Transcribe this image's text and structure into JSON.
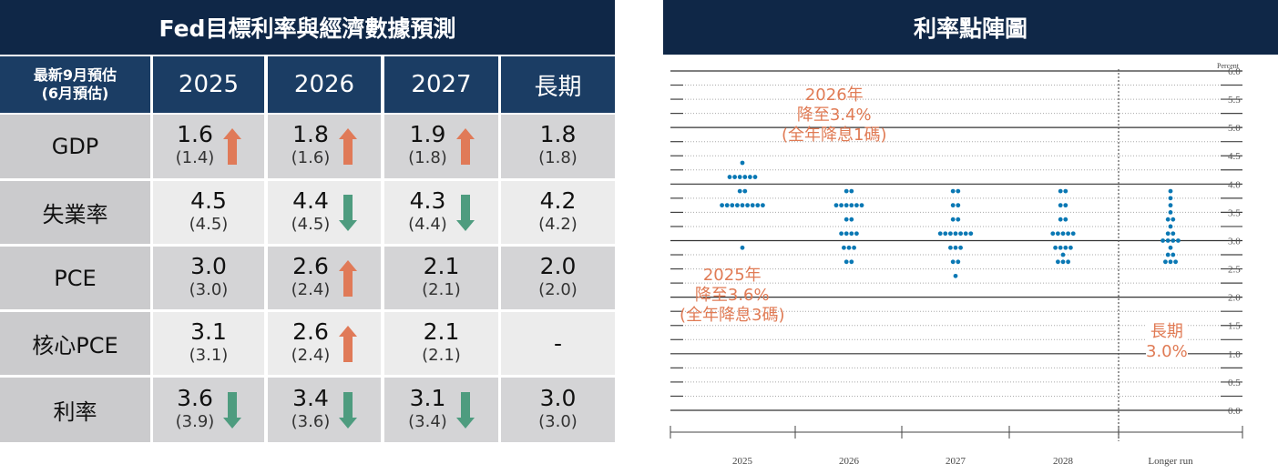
{
  "table": {
    "title": "Fed目標利率與經濟數據預測",
    "corner": [
      "最新9月預估",
      "(6月預估)"
    ],
    "columns": [
      "2025",
      "2026",
      "2027",
      "長期"
    ],
    "rows": [
      {
        "label": "GDP",
        "cells": [
          {
            "v": "1.6",
            "p": "(1.4)",
            "a": "up"
          },
          {
            "v": "1.8",
            "p": "(1.6)",
            "a": "up"
          },
          {
            "v": "1.9",
            "p": "(1.8)",
            "a": "up"
          },
          {
            "v": "1.8",
            "p": "(1.8)",
            "a": ""
          }
        ]
      },
      {
        "label": "失業率",
        "cells": [
          {
            "v": "4.5",
            "p": "(4.5)",
            "a": ""
          },
          {
            "v": "4.4",
            "p": "(4.5)",
            "a": "down"
          },
          {
            "v": "4.3",
            "p": "(4.4)",
            "a": "down"
          },
          {
            "v": "4.2",
            "p": "(4.2)",
            "a": ""
          }
        ]
      },
      {
        "label": "PCE",
        "cells": [
          {
            "v": "3.0",
            "p": "(3.0)",
            "a": ""
          },
          {
            "v": "2.6",
            "p": "(2.4)",
            "a": "up"
          },
          {
            "v": "2.1",
            "p": "(2.1)",
            "a": ""
          },
          {
            "v": "2.0",
            "p": "(2.0)",
            "a": ""
          }
        ]
      },
      {
        "label": "核心PCE",
        "cells": [
          {
            "v": "3.1",
            "p": "(3.1)",
            "a": ""
          },
          {
            "v": "2.6",
            "p": "(2.4)",
            "a": "up"
          },
          {
            "v": "2.1",
            "p": "(2.1)",
            "a": ""
          },
          {
            "v": "-",
            "p": "",
            "a": ""
          }
        ]
      },
      {
        "label": "利率",
        "cells": [
          {
            "v": "3.6",
            "p": "(3.9)",
            "a": "down"
          },
          {
            "v": "3.4",
            "p": "(3.6)",
            "a": "down"
          },
          {
            "v": "3.1",
            "p": "(3.4)",
            "a": "down"
          },
          {
            "v": "3.0",
            "p": "(3.0)",
            "a": ""
          }
        ]
      }
    ]
  },
  "colors": {
    "up": "#e07a58",
    "down": "#4e9c7f",
    "dot": "#0a78b4",
    "annotation": "#e07b55"
  },
  "chart_data": {
    "type": "scatter",
    "title": "利率點陣圖",
    "ylabel": "Percent",
    "ylim": [
      0,
      6
    ],
    "yticks": [
      "6.0",
      "5.5",
      "5.0",
      "4.5",
      "4.0",
      "3.5",
      "3.0",
      "2.5",
      "2.0",
      "1.5",
      "1.0",
      "0.5",
      "0.0"
    ],
    "categories": [
      "2025",
      "2026",
      "2027",
      "2028",
      "Longer run"
    ],
    "dots": [
      [
        [
          4.375,
          1
        ],
        [
          4.125,
          6
        ],
        [
          3.875,
          2
        ],
        [
          3.625,
          9
        ],
        [
          2.875,
          1
        ]
      ],
      [
        [
          3.875,
          2
        ],
        [
          3.625,
          6
        ],
        [
          3.375,
          2
        ],
        [
          3.125,
          4
        ],
        [
          2.875,
          3
        ],
        [
          2.625,
          2
        ]
      ],
      [
        [
          3.875,
          2
        ],
        [
          3.625,
          2
        ],
        [
          3.375,
          2
        ],
        [
          3.125,
          7
        ],
        [
          2.875,
          3
        ],
        [
          2.625,
          2
        ],
        [
          2.375,
          1
        ]
      ],
      [
        [
          3.875,
          2
        ],
        [
          3.625,
          2
        ],
        [
          3.375,
          2
        ],
        [
          3.125,
          5
        ],
        [
          2.875,
          4
        ],
        [
          2.75,
          1
        ],
        [
          2.625,
          3
        ]
      ],
      [
        [
          3.875,
          1
        ],
        [
          3.75,
          1
        ],
        [
          3.625,
          1
        ],
        [
          3.5,
          1
        ],
        [
          3.375,
          2
        ],
        [
          3.25,
          1
        ],
        [
          3.125,
          2
        ],
        [
          3.0,
          4
        ],
        [
          2.875,
          1
        ],
        [
          2.75,
          2
        ],
        [
          2.625,
          3
        ]
      ]
    ],
    "annotations": {
      "a2026": [
        "2026年",
        "降至3.4%",
        "(全年降息1碼)"
      ],
      "a2025": [
        "2025年",
        "降至3.6%",
        "(全年降息3碼)"
      ],
      "along": [
        "長期",
        "3.0%"
      ]
    }
  }
}
